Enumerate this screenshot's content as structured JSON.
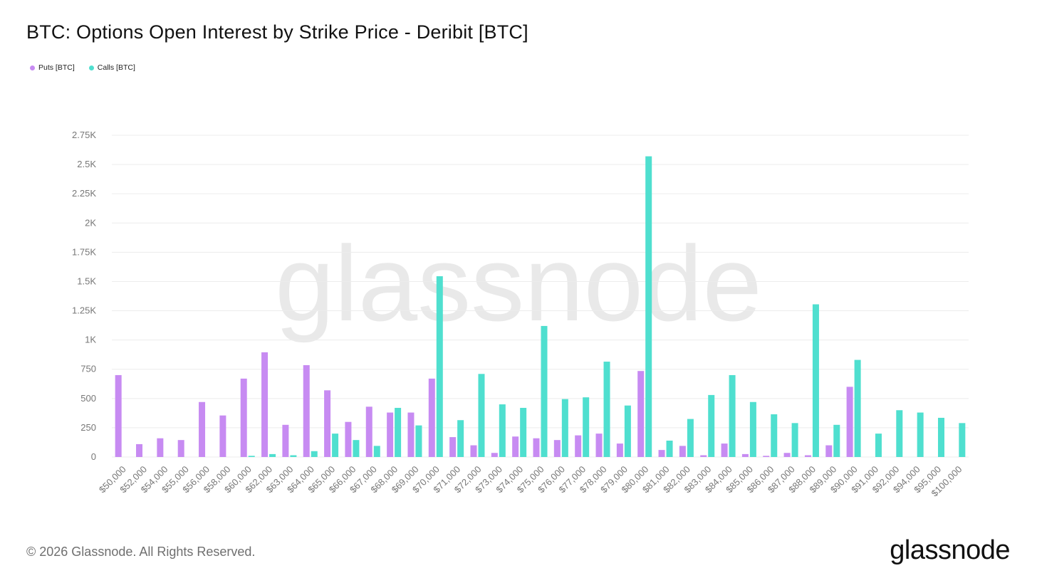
{
  "title": "BTC: Options Open Interest by Strike Price - Deribit [BTC]",
  "legend": [
    {
      "label": "Puts [BTC]",
      "color": "#c78bf2"
    },
    {
      "label": "Calls [BTC]",
      "color": "#4fdfcf"
    }
  ],
  "watermark": "glassnode",
  "footer": "© 2026 Glassnode. All Rights Reserved.",
  "brand": "glassnode",
  "chart_data": {
    "type": "bar",
    "title": "BTC: Options Open Interest by Strike Price - Deribit [BTC]",
    "xlabel": "",
    "ylabel": "",
    "ylim": [
      0,
      2750
    ],
    "yticks": [
      0,
      250,
      500,
      750,
      1000,
      1250,
      1500,
      1750,
      2000,
      2250,
      2500,
      2750
    ],
    "ytick_labels": [
      "0",
      "250",
      "500",
      "750",
      "1K",
      "1.25K",
      "1.5K",
      "1.75K",
      "2K",
      "2.25K",
      "2.5K",
      "2.75K"
    ],
    "categories": [
      "$50,000",
      "$52,000",
      "$54,000",
      "$55,000",
      "$56,000",
      "$58,000",
      "$60,000",
      "$62,000",
      "$63,000",
      "$64,000",
      "$65,000",
      "$66,000",
      "$67,000",
      "$68,000",
      "$69,000",
      "$70,000",
      "$71,000",
      "$72,000",
      "$73,000",
      "$74,000",
      "$75,000",
      "$76,000",
      "$77,000",
      "$78,000",
      "$79,000",
      "$80,000",
      "$81,000",
      "$82,000",
      "$83,000",
      "$84,000",
      "$85,000",
      "$86,000",
      "$87,000",
      "$88,000",
      "$89,000",
      "$90,000",
      "$91,000",
      "$92,000",
      "$94,000",
      "$95,000",
      "$100,000"
    ],
    "series": [
      {
        "name": "Puts [BTC]",
        "color": "#c78bf2",
        "values": [
          700,
          110,
          160,
          145,
          470,
          355,
          670,
          895,
          275,
          785,
          570,
          300,
          430,
          380,
          380,
          670,
          170,
          100,
          35,
          175,
          160,
          145,
          185,
          200,
          115,
          735,
          60,
          95,
          15,
          115,
          25,
          10,
          35,
          15,
          100,
          600,
          0,
          0,
          0,
          0,
          0
        ]
      },
      {
        "name": "Calls [BTC]",
        "color": "#4fdfcf",
        "values": [
          0,
          0,
          0,
          0,
          0,
          0,
          10,
          25,
          15,
          50,
          200,
          145,
          95,
          420,
          270,
          1545,
          315,
          710,
          450,
          420,
          1120,
          495,
          510,
          815,
          440,
          2570,
          140,
          325,
          530,
          700,
          470,
          365,
          290,
          1305,
          275,
          830,
          200,
          400,
          380,
          335,
          290
        ]
      }
    ]
  }
}
